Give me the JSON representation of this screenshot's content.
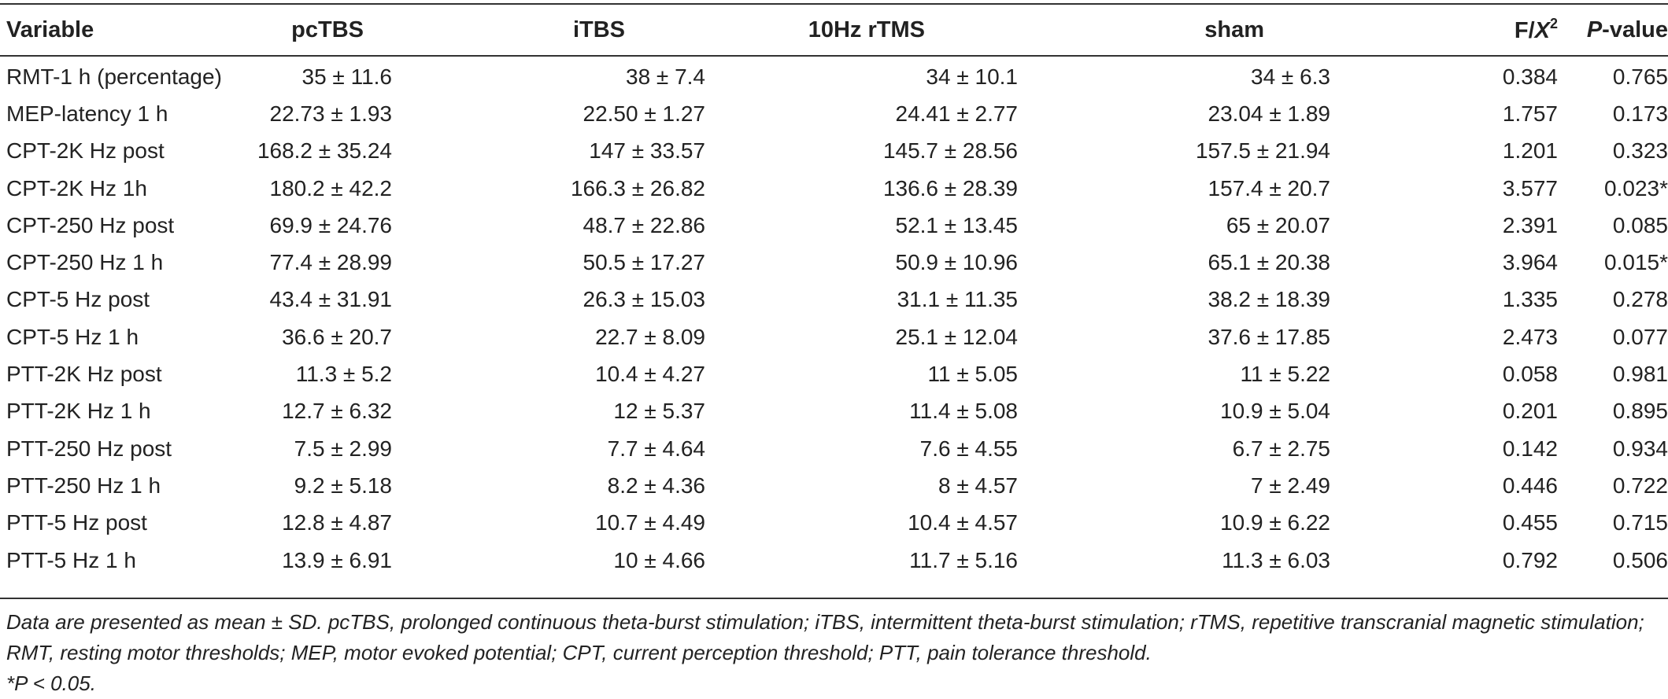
{
  "table": {
    "headers": {
      "variable": "Variable",
      "g1": "pcTBS",
      "g2": "iTBS",
      "g3": "10Hz rTMS",
      "g4": "sham",
      "f_prefix": "F/",
      "f_symbol": "X",
      "f_sup": "2",
      "p_italic": "P",
      "p_rest": "-value"
    },
    "rows": [
      {
        "variable": "RMT-1 h (percentage)",
        "pctbs": "35 ± 11.6",
        "itbs": "38 ± 7.4",
        "rtms": "34 ± 10.1",
        "sham": "34 ± 6.3",
        "f": "0.384",
        "p": "0.765"
      },
      {
        "variable": "MEP-latency 1 h",
        "pctbs": "22.73 ± 1.93",
        "itbs": "22.50 ± 1.27",
        "rtms": "24.41 ± 2.77",
        "sham": "23.04 ± 1.89",
        "f": "1.757",
        "p": "0.173"
      },
      {
        "variable": "CPT-2K Hz post",
        "pctbs": "168.2 ± 35.24",
        "itbs": "147 ± 33.57",
        "rtms": "145.7 ± 28.56",
        "sham": "157.5 ± 21.94",
        "f": "1.201",
        "p": "0.323"
      },
      {
        "variable": "CPT-2K Hz 1h",
        "pctbs": "180.2 ± 42.2",
        "itbs": "166.3 ± 26.82",
        "rtms": "136.6 ± 28.39",
        "sham": "157.4 ± 20.7",
        "f": "3.577",
        "p": "0.023*"
      },
      {
        "variable": "CPT-250 Hz post",
        "pctbs": "69.9 ± 24.76",
        "itbs": "48.7 ± 22.86",
        "rtms": "52.1 ± 13.45",
        "sham": "65 ± 20.07",
        "f": "2.391",
        "p": "0.085"
      },
      {
        "variable": "CPT-250 Hz 1 h",
        "pctbs": "77.4 ± 28.99",
        "itbs": "50.5 ± 17.27",
        "rtms": "50.9 ± 10.96",
        "sham": "65.1 ± 20.38",
        "f": "3.964",
        "p": "0.015*"
      },
      {
        "variable": "CPT-5 Hz post",
        "pctbs": "43.4 ± 31.91",
        "itbs": "26.3 ± 15.03",
        "rtms": "31.1 ± 11.35",
        "sham": "38.2 ± 18.39",
        "f": "1.335",
        "p": "0.278"
      },
      {
        "variable": "CPT-5 Hz 1 h",
        "pctbs": "36.6 ± 20.7",
        "itbs": "22.7 ± 8.09",
        "rtms": "25.1 ± 12.04",
        "sham": "37.6 ± 17.85",
        "f": "2.473",
        "p": "0.077"
      },
      {
        "variable": "PTT-2K Hz post",
        "pctbs": "11.3 ± 5.2",
        "itbs": "10.4 ± 4.27",
        "rtms": "11 ± 5.05",
        "sham": "11 ± 5.22",
        "f": "0.058",
        "p": "0.981"
      },
      {
        "variable": "PTT-2K Hz 1 h",
        "pctbs": "12.7 ± 6.32",
        "itbs": "12 ± 5.37",
        "rtms": "11.4 ± 5.08",
        "sham": "10.9 ± 5.04",
        "f": "0.201",
        "p": "0.895"
      },
      {
        "variable": "PTT-250 Hz post",
        "pctbs": "7.5 ± 2.99",
        "itbs": "7.7 ± 4.64",
        "rtms": "7.6 ± 4.55",
        "sham": "6.7 ± 2.75",
        "f": "0.142",
        "p": "0.934"
      },
      {
        "variable": "PTT-250 Hz 1 h",
        "pctbs": "9.2 ± 5.18",
        "itbs": "8.2 ± 4.36",
        "rtms": "8 ± 4.57",
        "sham": "7 ± 2.49",
        "f": "0.446",
        "p": "0.722"
      },
      {
        "variable": "PTT-5 Hz post",
        "pctbs": "12.8 ± 4.87",
        "itbs": "10.7 ± 4.49",
        "rtms": "10.4 ± 4.57",
        "sham": "10.9 ± 6.22",
        "f": "0.455",
        "p": "0.715"
      },
      {
        "variable": "PTT-5 Hz 1 h",
        "pctbs": "13.9 ± 6.91",
        "itbs": "10 ± 4.66",
        "rtms": "11.7 ± 5.16",
        "sham": "11.3 ± 6.03",
        "f": "0.792",
        "p": "0.506"
      }
    ]
  },
  "notes": {
    "footnote": "Data are presented as mean ± SD. pcTBS, prolonged continuous theta-burst stimulation; iTBS, intermittent theta-burst stimulation; rTMS, repetitive transcranial magnetic stimulation; RMT, resting motor thresholds; MEP, motor evoked potential; CPT, current perception threshold; PTT, pain tolerance threshold.",
    "significance": "*P < 0.05."
  }
}
